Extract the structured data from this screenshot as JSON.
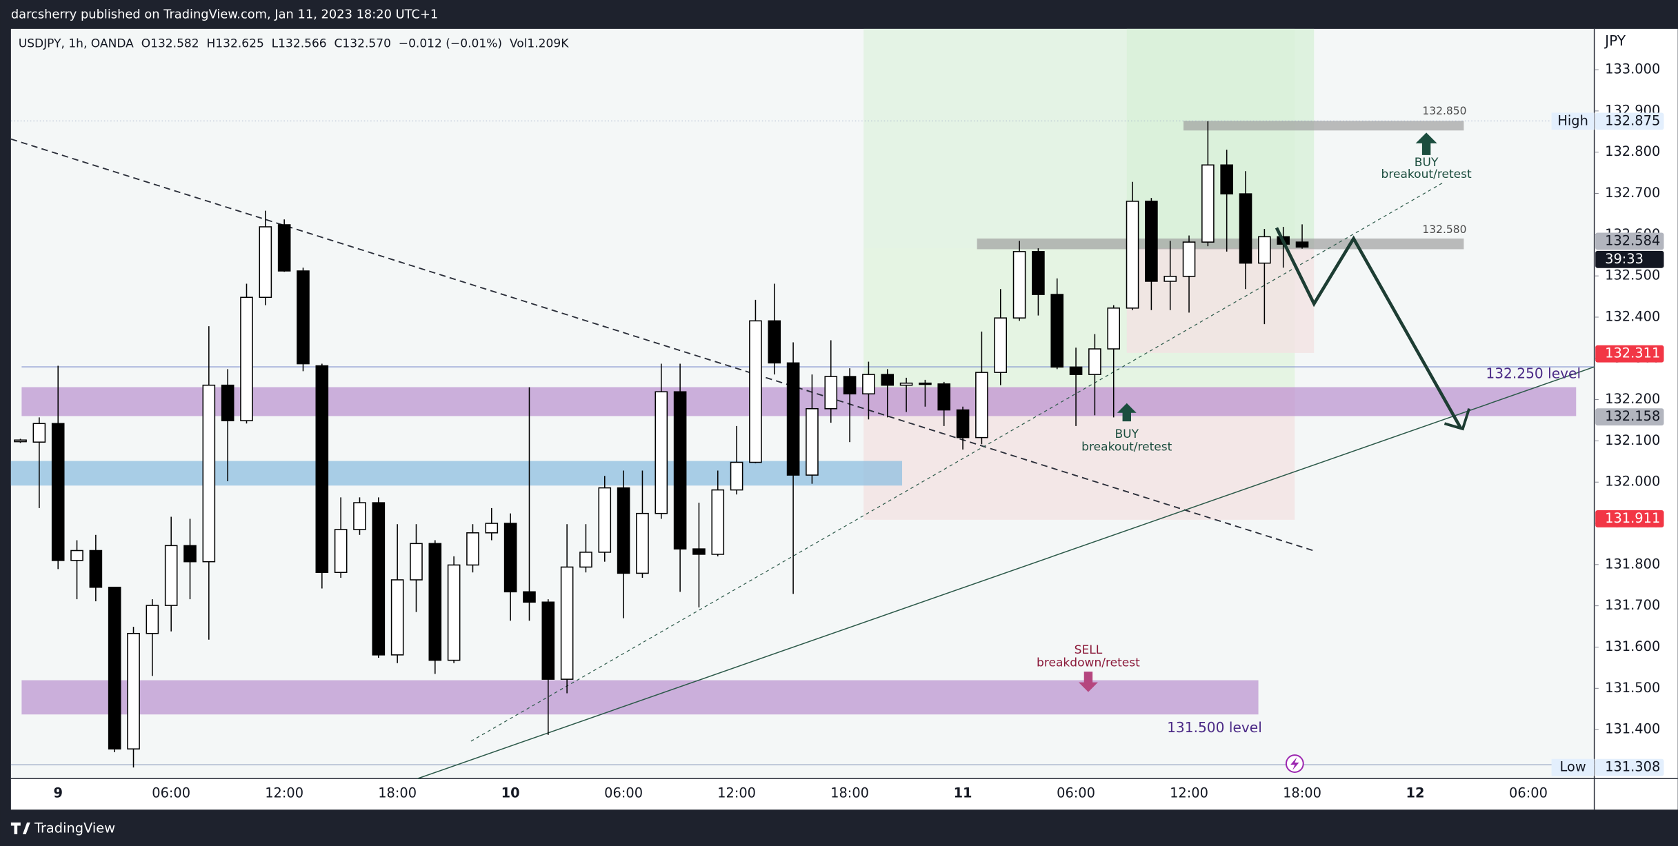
{
  "published": "darcsherry published on TradingView.com, Jan 11, 2023 18:20 UTC+1",
  "brand": "TradingView",
  "chart_data": {
    "type": "candlestick",
    "legend": [
      "USDJPY, 1h, OANDA",
      "O132.582",
      "H132.625",
      "L132.566",
      "C132.570",
      "−0.012 (−0.01%)",
      "Vol1.209K"
    ],
    "currency": "JPY",
    "up_color": "#ffffff",
    "down_color": "#000000",
    "categories": [
      null,
      null,
      "9",
      null,
      null,
      null,
      null,
      null,
      "06:00",
      null,
      null,
      null,
      null,
      null,
      "12:00",
      null,
      null,
      null,
      null,
      null,
      "18:00",
      null,
      null,
      null,
      null,
      null,
      "10",
      null,
      null,
      null,
      null,
      null,
      "06:00",
      null,
      null,
      null,
      null,
      null,
      "12:00",
      null,
      null,
      null,
      null,
      null,
      "18:00",
      null,
      null,
      null,
      null,
      null,
      "11",
      null,
      null,
      null,
      null,
      null,
      "06:00",
      null,
      null,
      null,
      null,
      null,
      "12:00",
      null,
      null,
      null,
      null,
      null,
      "18:00",
      null,
      null,
      null,
      null,
      null,
      "12",
      null,
      null,
      null,
      null,
      null,
      "06:00",
      null,
      null,
      null
    ],
    "open": [
      132.098,
      132.097,
      132.142,
      131.81,
      131.834,
      131.745,
      131.353,
      131.633,
      131.701,
      131.846,
      131.807,
      132.235,
      132.149,
      132.448,
      132.624,
      132.512,
      132.282,
      131.781,
      131.885,
      131.95,
      131.581,
      131.763,
      131.851,
      131.568,
      131.799,
      131.877,
      131.9,
      131.734,
      131.709,
      131.522,
      131.794,
      131.83,
      131.986,
      131.779,
      131.924,
      132.219,
      131.838,
      131.825,
      131.981,
      132.048,
      132.391,
      132.289,
      132.017,
      132.178,
      132.256,
      132.214,
      132.261,
      132.235,
      132.24,
      132.238,
      132.175,
      132.108,
      132.266,
      132.398,
      132.559,
      132.455,
      132.279,
      132.261,
      132.323,
      132.422,
      132.681,
      132.487,
      132.499,
      132.582,
      132.769,
      132.699,
      132.531,
      132.595,
      132.582,
      null,
      null,
      null,
      null,
      null,
      null,
      null,
      null,
      null,
      null,
      null,
      null,
      null,
      null,
      null
    ],
    "high": [
      132.105,
      132.157,
      132.282,
      131.859,
      131.872,
      131.745,
      131.649,
      131.716,
      131.916,
      131.911,
      132.378,
      132.274,
      132.481,
      132.658,
      132.637,
      132.52,
      132.287,
      131.963,
      131.963,
      131.963,
      131.898,
      131.898,
      131.859,
      131.82,
      131.898,
      131.937,
      131.924,
      132.23,
      131.716,
      131.898,
      131.898,
      132.015,
      132.028,
      132.028,
      132.287,
      132.287,
      131.95,
      132.028,
      132.136,
      132.442,
      132.481,
      132.339,
      132.261,
      132.344,
      132.276,
      132.292,
      132.274,
      132.253,
      132.248,
      132.243,
      132.183,
      132.365,
      132.468,
      132.585,
      132.567,
      132.494,
      132.326,
      132.359,
      132.429,
      132.728,
      132.689,
      132.585,
      132.598,
      132.875,
      132.806,
      132.754,
      132.614,
      132.619,
      132.625,
      null,
      null,
      null,
      null,
      null,
      null,
      null,
      null,
      null,
      null,
      null,
      null,
      null,
      null,
      null
    ],
    "low": [
      132.095,
      131.937,
      131.789,
      131.716,
      131.711,
      131.345,
      131.308,
      131.53,
      131.638,
      131.716,
      131.618,
      132.002,
      132.142,
      132.429,
      132.51,
      132.269,
      131.742,
      131.768,
      131.872,
      131.574,
      131.561,
      131.685,
      131.535,
      131.561,
      131.781,
      131.859,
      131.664,
      131.664,
      131.387,
      131.488,
      131.781,
      131.807,
      131.67,
      131.768,
      131.911,
      131.734,
      131.696,
      131.82,
      131.97,
      132.046,
      132.261,
      131.729,
      131.996,
      132.144,
      132.097,
      132.152,
      132.157,
      132.17,
      132.183,
      132.136,
      132.079,
      132.092,
      132.235,
      132.391,
      132.404,
      132.274,
      132.136,
      132.162,
      132.157,
      132.417,
      132.417,
      132.417,
      132.411,
      132.572,
      132.559,
      132.468,
      132.383,
      132.52,
      132.566,
      null,
      null,
      null,
      null,
      null,
      null,
      null,
      null,
      null,
      null,
      null,
      null,
      null,
      null,
      null
    ],
    "close": [
      132.102,
      132.142,
      131.81,
      131.834,
      131.745,
      131.353,
      131.633,
      131.701,
      131.846,
      131.807,
      132.235,
      132.149,
      132.448,
      132.619,
      132.512,
      132.287,
      131.781,
      131.885,
      131.95,
      131.581,
      131.763,
      131.851,
      131.568,
      131.799,
      131.877,
      131.9,
      131.734,
      131.709,
      131.522,
      131.794,
      131.83,
      131.986,
      131.779,
      131.924,
      132.219,
      131.838,
      131.825,
      131.981,
      132.048,
      132.391,
      132.289,
      132.017,
      132.178,
      132.256,
      132.214,
      132.261,
      132.235,
      132.24,
      132.238,
      132.175,
      132.108,
      132.266,
      132.398,
      132.559,
      132.455,
      132.279,
      132.261,
      132.323,
      132.422,
      132.681,
      132.487,
      132.499,
      132.582,
      132.769,
      132.699,
      132.531,
      132.595,
      132.577,
      132.57,
      null,
      null,
      null,
      null,
      null,
      null,
      null,
      null,
      null,
      null,
      null,
      null,
      null,
      null,
      null
    ],
    "ylim": [
      131.281,
      133.099
    ],
    "yticks": [
      {
        "value": 133.0,
        "label": "133.000"
      },
      {
        "value": 132.9,
        "label": "132.900"
      },
      {
        "value": 132.8,
        "label": "132.800"
      },
      {
        "value": 132.7,
        "label": "132.700"
      },
      {
        "value": 132.6,
        "label": "132.600"
      },
      {
        "value": 132.5,
        "label": "132.500"
      },
      {
        "value": 132.4,
        "label": "132.400"
      },
      {
        "value": 132.3,
        "label": "132.300"
      },
      {
        "value": 132.2,
        "label": "132.200"
      },
      {
        "value": 132.1,
        "label": "132.100"
      },
      {
        "value": 132.0,
        "label": "132.000"
      },
      {
        "value": 131.9,
        "label": "131.900"
      },
      {
        "value": 131.8,
        "label": "131.800"
      },
      {
        "value": 131.7,
        "label": "131.700"
      },
      {
        "value": 131.6,
        "label": "131.600"
      },
      {
        "value": 131.5,
        "label": "131.500"
      },
      {
        "value": 131.4,
        "label": "131.400"
      }
    ],
    "grid": false,
    "price_labels": [
      {
        "name": "High",
        "value": 132.875,
        "color": "#e3effd"
      },
      {
        "value": 132.584,
        "color": "#b2b5be"
      },
      {
        "value": 132.311,
        "color": "#f23645"
      },
      {
        "value": 132.158,
        "color": "#b2b5be"
      },
      {
        "value": 131.911,
        "color": "#f23645"
      },
      {
        "name": "Low",
        "value": 131.308,
        "color": "#e3effd"
      }
    ],
    "countdown": "39:33",
    "annotations": [
      "132.850",
      "132.580",
      "132.250 level",
      "131.500 level",
      "BUY",
      "breakout/retest",
      "BUY",
      "breakout/retest",
      "SELL",
      "breakdown/retest"
    ]
  }
}
